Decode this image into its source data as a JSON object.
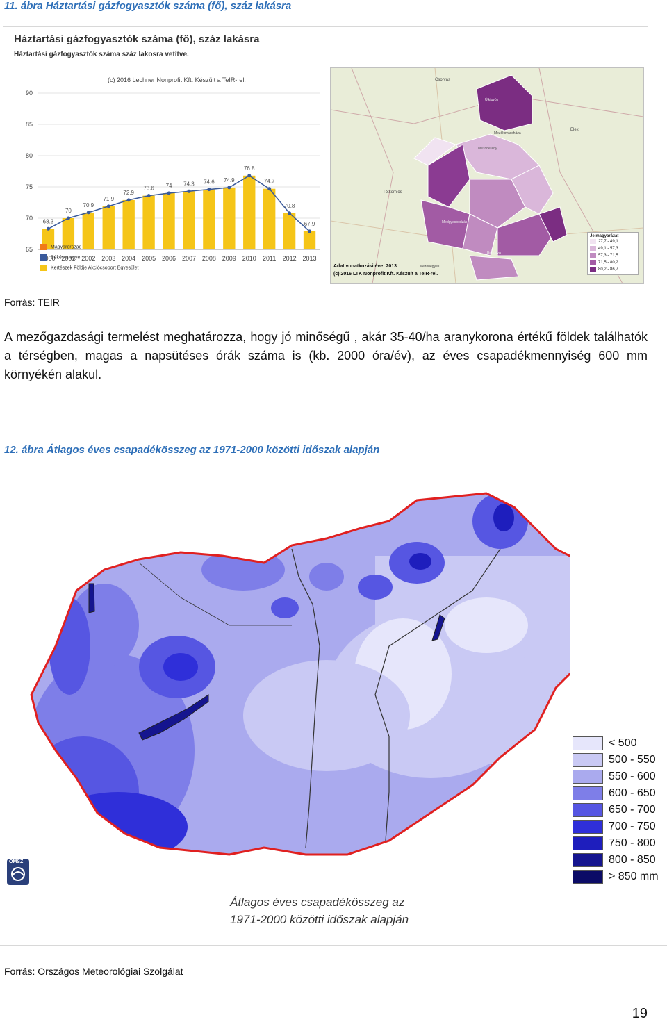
{
  "fig1_caption": "11. ábra Háztartási gázfogyasztók száma (fő), száz lakásra",
  "chart": {
    "title": "Háztartási gázfogyasztók száma (fő), száz lakásra",
    "subtitle": "Háztartási gázfogyasztók száma száz lakosra vetítve.",
    "credit": "(c) 2016 Lechner Nonprofit Kft. Készült a TeIR-rel.",
    "legend": [
      "Magyarország",
      "Békés megye",
      "Kertészek Földje Akciócsoport Egyesület"
    ]
  },
  "chart_data": {
    "type": "bar",
    "categories": [
      "2000",
      "2001",
      "2002",
      "2003",
      "2004",
      "2005",
      "2006",
      "2007",
      "2008",
      "2009",
      "2010",
      "2011",
      "2012",
      "2013"
    ],
    "series": [
      {
        "name": "Kertészek Földje Akciócsoport Egyesület",
        "values": [
          68.3,
          70,
          70.9,
          71.9,
          72.9,
          73.6,
          74,
          74.3,
          74.6,
          74.9,
          76.8,
          74.7,
          70.8,
          67.9
        ]
      }
    ],
    "ylim": [
      65,
      90
    ],
    "yticks": [
      "65",
      "70",
      "75",
      "80",
      "85",
      "90"
    ],
    "colors": {
      "bar": "#f5c518",
      "line": "#3a5a9b",
      "line_point": "#3a5a9b"
    }
  },
  "map1": {
    "legend_title": "Jelmagyarázat",
    "legend": [
      "27,7 - 49,1",
      "49,1 - 57,3",
      "57,3 - 71,5",
      "71,5 - 80,2",
      "80,2 - 86,7"
    ],
    "legend_colors": [
      "#f1e3f1",
      "#dab7da",
      "#c08bc0",
      "#a25ba4",
      "#7b2d82"
    ],
    "info_line1": "Adat vonatkozási éve: 2013",
    "info_line2": "(c) 2016 LTK Nonprofit Kft. Készült a TeIR-rel.",
    "places": [
      "Csorvás",
      "Újkígyós",
      "Mezőberény",
      "Tótkomlós",
      "Medgyesbodzás",
      "Mezőkovácsháza",
      "Elek",
      "Battonya",
      "Mezőhegyes"
    ]
  },
  "source1": "Forrás: TEIR",
  "paragraph": "A mezőgazdasági termelést meghatározza, hogy jó minőségű , akár 35-40/ha aranykorona értékű földek találhatók a térségben, magas a napsütéses órák száma is (kb. 2000 óra/év), az éves csapadékmennyiség 600 mm környékén alakul.",
  "fig2_caption": "12. ábra Átlagos éves csapadékösszeg az 1971-2000 közötti időszak alapján",
  "map2": {
    "legend": [
      "< 500",
      "500 - 550",
      "550 - 600",
      "600 - 650",
      "650 - 700",
      "700 - 750",
      "750 - 800",
      "800 - 850",
      "> 850 mm"
    ],
    "legend_colors": [
      "#e6e6fb",
      "#c9c9f4",
      "#aaaaee",
      "#7e7ee8",
      "#5656e2",
      "#2f2fd9",
      "#1e1ebd",
      "#15158f",
      "#0b0b66"
    ],
    "caption_line1": "Átlagos éves csapadékösszeg az",
    "caption_line2": "1971-2000 közötti időszak alapján",
    "logo_text": "OMSZ"
  },
  "source2": "Forrás: Országos Meteorológiai Szolgálat",
  "page_number": "19"
}
